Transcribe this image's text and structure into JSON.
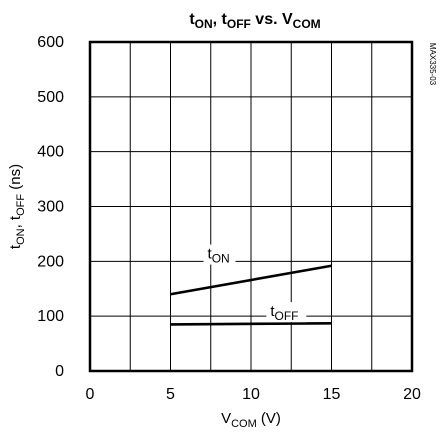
{
  "chart_data": {
    "type": "line",
    "title_parts": [
      {
        "text": "t",
        "sub": "ON"
      },
      {
        "text": ", t",
        "sub": "OFF"
      },
      {
        "text": " vs. V",
        "sub": "COM"
      }
    ],
    "xlabel_parts": [
      {
        "text": "V",
        "sub": "COM"
      },
      {
        "text": " (V)",
        "sub": ""
      }
    ],
    "ylabel_parts": [
      {
        "text": "t",
        "sub": "ON"
      },
      {
        "text": ", t",
        "sub": "OFF"
      },
      {
        "text": " (ns)",
        "sub": ""
      }
    ],
    "side_label": "MAX335-03",
    "xlim": [
      0,
      20
    ],
    "ylim": [
      0,
      600
    ],
    "x_ticks": [
      "0",
      "5",
      "10",
      "15",
      "20"
    ],
    "y_ticks": [
      "0",
      "100",
      "200",
      "300",
      "400",
      "500",
      "600"
    ],
    "x_tick_values": [
      0,
      5,
      10,
      15,
      20
    ],
    "y_tick_values": [
      0,
      100,
      200,
      300,
      400,
      500,
      600
    ],
    "grid": true,
    "series": [
      {
        "name_parts": [
          {
            "text": "t",
            "sub": "ON"
          }
        ],
        "x": [
          5,
          15
        ],
        "y": [
          140,
          192
        ],
        "color": "#000000"
      },
      {
        "name_parts": [
          {
            "text": "t",
            "sub": "OFF"
          }
        ],
        "x": [
          5,
          15
        ],
        "y": [
          85,
          87
        ],
        "color": "#000000"
      }
    ]
  }
}
